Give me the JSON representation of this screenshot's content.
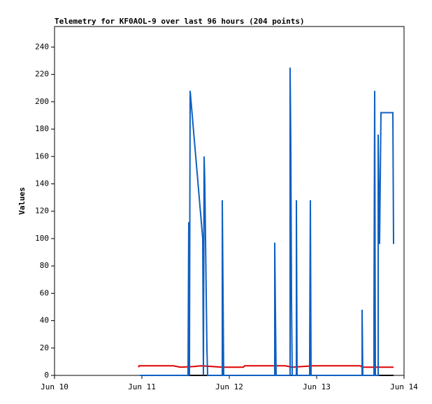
{
  "chart_data": {
    "type": "line",
    "title": "Telemetry for KF0AOL-9 over last 96 hours (204 points)",
    "y_label": "Values",
    "xlim": [
      10,
      14
    ],
    "xticks": [
      {
        "value": 10,
        "label": "Jun 10"
      },
      {
        "value": 11,
        "label": "Jun 11"
      },
      {
        "value": 12,
        "label": "Jun 12"
      },
      {
        "value": 13,
        "label": "Jun 13"
      },
      {
        "value": 14,
        "label": "Jun 14"
      }
    ],
    "ylim": [
      0,
      255
    ],
    "yticks": [
      0,
      20,
      40,
      60,
      80,
      100,
      120,
      140,
      160,
      180,
      200,
      220,
      240
    ],
    "series": [
      {
        "color": "#000000",
        "x": [
          10.976,
          13.88
        ],
        "values": [
          0,
          0
        ]
      },
      {
        "color": "#e00000",
        "x": [
          10.96,
          10.968,
          11.36,
          11.44,
          11.6,
          11.68,
          11.92,
          12.16,
          12.176,
          12.64,
          12.72,
          12.96,
          13.5,
          13.52,
          13.88
        ],
        "values": [
          6,
          7,
          7,
          6,
          6.5,
          7,
          6,
          6,
          7,
          7,
          6,
          7,
          7,
          6,
          6
        ]
      },
      {
        "color": "#1060c0",
        "x": [
          10.976,
          11.528,
          11.536,
          11.544,
          11.552,
          11.696,
          11.704,
          11.712,
          11.72,
          11.728,
          11.736,
          11.744,
          11.752,
          11.92,
          11.92,
          11.928,
          11.936,
          12.52,
          12.52,
          12.528,
          12.536,
          12.696,
          12.696,
          12.704,
          12.712,
          12.72,
          12.768,
          12.768,
          12.776,
          12.92,
          12.92,
          12.928,
          12.936,
          13.52,
          13.52,
          13.528,
          13.656,
          13.656,
          13.664,
          13.672,
          13.704,
          13.704,
          13.72,
          13.736,
          13.872,
          13.88
        ],
        "values": [
          0,
          0,
          112,
          0,
          208,
          100,
          0,
          160,
          140,
          100,
          60,
          20,
          0,
          0,
          128,
          64,
          0,
          0,
          97,
          48,
          0,
          0,
          225,
          168,
          56,
          0,
          0,
          128,
          0,
          0,
          16,
          128,
          0,
          0,
          48,
          0,
          0,
          48,
          208,
          0,
          0,
          176,
          96,
          192,
          192,
          96
        ]
      }
    ]
  }
}
